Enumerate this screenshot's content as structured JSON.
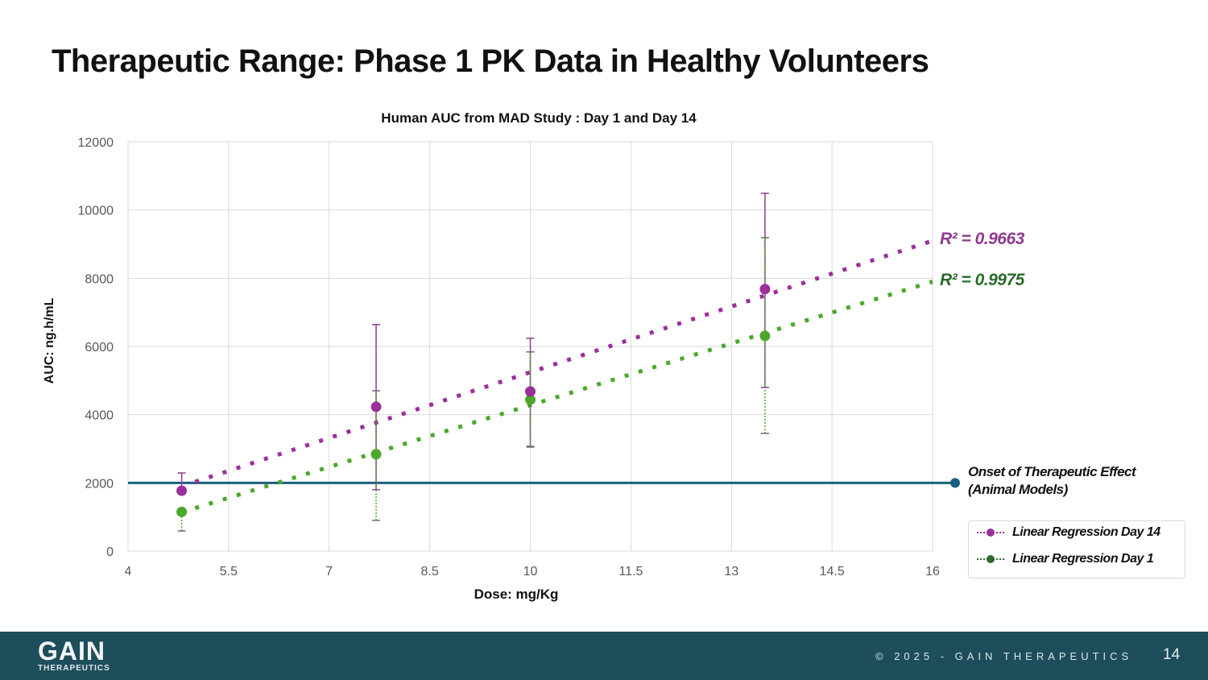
{
  "slide": {
    "title": "Therapeutic Range: Phase 1 PK Data in Healthy Volunteers"
  },
  "annotations": {
    "r2_day14": "R² = 0.9663",
    "r2_day1": "R² = 0.9975",
    "onset_line1": "Onset of Therapeutic Effect",
    "onset_line2": "(Animal Models)"
  },
  "colors": {
    "day14": "#9b2f9b",
    "day1": "#4ca72a",
    "threshold": "#1b5f7f",
    "footer": "#1e4d5b"
  },
  "footer": {
    "logo_text": "GAIN",
    "logo_subtext": "THERAPEUTICS",
    "copyright": "© 2025 - GAIN THERAPEUTICS",
    "page_number": "14"
  },
  "chart_data": {
    "type": "scatter",
    "title": "Human AUC from MAD Study : Day 1 and Day 14",
    "xlabel": "Dose: mg/Kg",
    "ylabel": "AUC: ng.h/mL",
    "xlim": [
      4,
      16
    ],
    "ylim": [
      0,
      12000
    ],
    "xticks": [
      "4",
      "5.5",
      "7",
      "8.5",
      "10",
      "11.5",
      "13",
      "14.5",
      "16"
    ],
    "yticks": [
      "0",
      "2000",
      "4000",
      "6000",
      "8000",
      "10000",
      "12000"
    ],
    "grid": true,
    "legend_position": "bottom-right",
    "series": [
      {
        "name": "Day 14",
        "legend_label": "Linear Regression Day 14",
        "color": "#9b2f9b",
        "x": [
          4.8,
          7.7,
          10,
          13.5
        ],
        "y": [
          1770,
          4230,
          4680,
          7680
        ],
        "err_low": [
          1770,
          1800,
          3070,
          4800
        ],
        "err_high": [
          2290,
          6640,
          6240,
          10490
        ],
        "trend": {
          "x": [
            5.0,
            16
          ],
          "y": [
            2030,
            9100
          ],
          "r2": 0.9663
        }
      },
      {
        "name": "Day 1",
        "legend_label": "Linear Regression Day 1",
        "color": "#4ca72a",
        "x": [
          4.8,
          7.7,
          10,
          13.5
        ],
        "y": [
          1150,
          2840,
          4440,
          6310
        ],
        "err_low": [
          590,
          900,
          3050,
          3450
        ],
        "err_high": [
          1150,
          4700,
          5840,
          9190
        ],
        "trend": {
          "x": [
            5.0,
            16
          ],
          "y": [
            1260,
            7900
          ],
          "r2": 0.9975
        }
      }
    ],
    "threshold": {
      "label": "Onset of Therapeutic Effect (Animal Models)",
      "y": 2000,
      "color": "#1b5f7f"
    }
  }
}
